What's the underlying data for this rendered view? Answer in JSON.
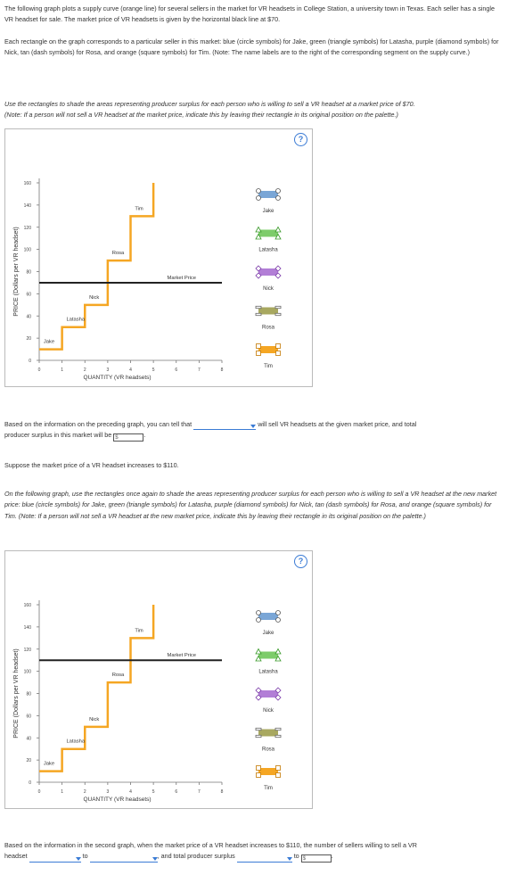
{
  "intro": {
    "p1": "The following graph plots a supply curve (orange line) for several sellers in the market for VR headsets in College Station, a university town in Texas. Each seller has a single VR headset for sale. The market price of VR headsets is given by the horizontal black line at $70.",
    "p2": "Each rectangle on the graph corresponds to a particular seller in this market: blue (circle symbols) for Jake, green (triangle symbols) for Latasha, purple (diamond symbols) for Nick, tan (dash symbols) for Rosa, and orange (square symbols) for Tim. (Note: The name labels are to the right of the corresponding segment on the supply curve.)"
  },
  "instr1": "Use the rectangles to shade the areas representing producer surplus for each person who is willing to sell a VR headset at a market price of $70.",
  "note1": "(Note: If a person will not sell a VR headset at the market price, indicate this by leaving their rectangle in its original position on the palette.)",
  "help_label": "?",
  "graph": {
    "ylabel": "PRICE (Dollars per VR headset)",
    "xlabel": "QUANTITY (VR headsets)",
    "xticks": [
      "0",
      "1",
      "2",
      "3",
      "4",
      "5",
      "6",
      "7",
      "8"
    ],
    "yticks": [
      "0",
      "20",
      "40",
      "60",
      "80",
      "100",
      "120",
      "140",
      "160"
    ],
    "market_price_label": "Market Price",
    "sellers": [
      {
        "name": "Jake",
        "cost": 10,
        "color": "#7aa6d6"
      },
      {
        "name": "Latasha",
        "cost": 30,
        "color": "#7dcc6a"
      },
      {
        "name": "Nick",
        "cost": 50,
        "color": "#b27ed6"
      },
      {
        "name": "Rosa",
        "cost": 90,
        "color": "#a8a860"
      },
      {
        "name": "Tim",
        "cost": 130,
        "color": "#f5a623"
      }
    ]
  },
  "chart_data": [
    {
      "type": "line",
      "x": [
        0,
        1,
        1,
        2,
        2,
        3,
        3,
        4,
        4,
        5,
        5
      ],
      "y": [
        10,
        10,
        30,
        30,
        50,
        50,
        90,
        90,
        130,
        130,
        160
      ],
      "xlabel": "QUANTITY (VR headsets)",
      "ylabel": "PRICE (Dollars per VR headset)",
      "xlim": [
        0,
        8
      ],
      "ylim": [
        0,
        160
      ],
      "market_price": 70
    },
    {
      "type": "line",
      "x": [
        0,
        1,
        1,
        2,
        2,
        3,
        3,
        4,
        4,
        5,
        5
      ],
      "y": [
        10,
        10,
        30,
        30,
        50,
        50,
        90,
        90,
        130,
        130,
        160
      ],
      "xlabel": "QUANTITY (VR headsets)",
      "ylabel": "PRICE (Dollars per VR headset)",
      "xlim": [
        0,
        8
      ],
      "ylim": [
        0,
        160
      ],
      "market_price": 110
    }
  ],
  "q1": {
    "before": "Based on the information on the preceding graph, you can tell that",
    "after": "will sell VR headsets at the given market price, and total",
    "line2": "producer surplus in this market will be",
    "money_placeholder": "$"
  },
  "suppose": "Suppose the market price of a VR headset increases to $110.",
  "instr2": "On the following graph, use the rectangles once again to shade the areas representing producer surplus for each person who is willing to sell a VR headset at the new market price: blue (circle symbols) for Jake, green (triangle symbols) for Latasha, purple (diamond symbols) for Nick, tan (dash symbols) for Rosa, and orange (square symbols) for Tim. (Note: If a person will not sell a VR headset at the new market price, indicate this by leaving their rectangle in its original position on the palette.)",
  "q2": {
    "line1": "Based on the information in the second graph, when the market price of a VR headset increases to $110, the number of sellers willing to sell a VR",
    "word_headset": "headset",
    "word_to1": "to",
    "mid": ", and total producer surplus",
    "word_to2": "to",
    "money_placeholder": "$"
  }
}
